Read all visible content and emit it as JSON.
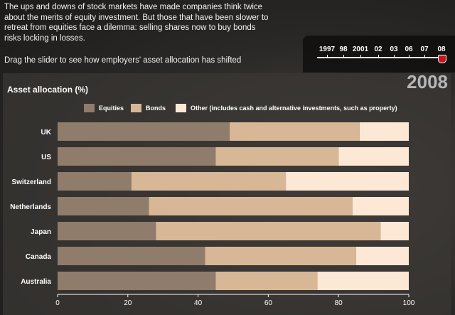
{
  "intro_text": "The ups and downs of stock markets have made companies think twice about the merits of equity investment. But those that have been slower to retreat from equities face a dilemma: selling shares now to buy bonds risks locking in losses.",
  "instruction": "Drag the slider to see how employers' asset allocation has shifted",
  "slider": {
    "labels": [
      "1997",
      "98",
      "2001",
      "02",
      "03",
      "06",
      "07",
      "08"
    ],
    "selected": "08"
  },
  "colors": {
    "equities": "#8f7c6b",
    "bonds": "#d7b795",
    "other": "#fde8d6"
  },
  "chart_data": {
    "type": "bar",
    "orientation": "horizontal",
    "stacked": true,
    "title": "Asset allocation (%)",
    "year": "2008",
    "categories": [
      "UK",
      "US",
      "Switzerland",
      "Netherlands",
      "Japan",
      "Canada",
      "Australia"
    ],
    "series": [
      {
        "name": "Equities",
        "values": [
          49,
          45,
          21,
          26,
          28,
          42,
          45
        ]
      },
      {
        "name": "Bonds",
        "values": [
          37,
          35,
          44,
          58,
          64,
          43,
          29
        ]
      },
      {
        "name": "Other (includes cash and alternative investments, such as property)",
        "values": [
          14,
          20,
          35,
          16,
          8,
          15,
          26
        ]
      }
    ],
    "xlim": [
      0,
      100
    ],
    "xticks": [
      "0",
      "20",
      "40",
      "60",
      "80",
      "100"
    ],
    "legend_position": "top"
  }
}
